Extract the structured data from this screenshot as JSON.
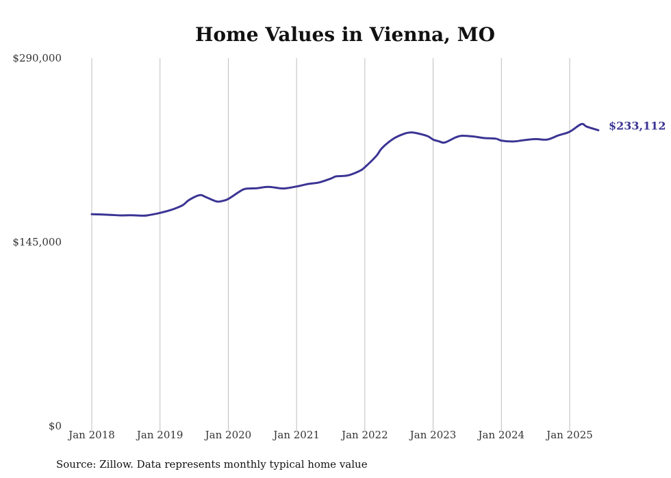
{
  "chart_data": {
    "type": "line",
    "title": "Home Values in Vienna, MO",
    "xlabel": "",
    "ylabel": "",
    "ylim": [
      0,
      290000
    ],
    "yticks": [
      {
        "value": 0,
        "label": "$0"
      },
      {
        "value": 145000,
        "label": "$145,000"
      },
      {
        "value": 290000,
        "label": "$290,000"
      }
    ],
    "xticks": [
      {
        "value": 2018.0,
        "label": "Jan 2018"
      },
      {
        "value": 2019.0,
        "label": "Jan 2019"
      },
      {
        "value": 2020.0,
        "label": "Jan 2020"
      },
      {
        "value": 2021.0,
        "label": "Jan 2021"
      },
      {
        "value": 2022.0,
        "label": "Jan 2022"
      },
      {
        "value": 2023.0,
        "label": "Jan 2023"
      },
      {
        "value": 2024.0,
        "label": "Jan 2024"
      },
      {
        "value": 2025.0,
        "label": "Jan 2025"
      }
    ],
    "grid": "vertical",
    "series": [
      {
        "color": "#3b3494",
        "end_label": "$233,112",
        "x": [
          2018.0,
          2018.25,
          2018.42,
          2018.58,
          2018.75,
          2018.83,
          2019.0,
          2019.17,
          2019.33,
          2019.42,
          2019.58,
          2019.67,
          2019.83,
          2019.92,
          2020.0,
          2020.17,
          2020.25,
          2020.42,
          2020.58,
          2020.75,
          2020.83,
          2021.0,
          2021.17,
          2021.33,
          2021.5,
          2021.58,
          2021.75,
          2021.92,
          2022.0,
          2022.17,
          2022.25,
          2022.42,
          2022.58,
          2022.67,
          2022.75,
          2022.92,
          2023.0,
          2023.08,
          2023.17,
          2023.33,
          2023.42,
          2023.58,
          2023.75,
          2023.92,
          2024.0,
          2024.17,
          2024.33,
          2024.5,
          2024.67,
          2024.83,
          2025.0,
          2025.17,
          2025.25,
          2025.42
        ],
        "values": [
          167000,
          166500,
          166000,
          166200,
          165800,
          166200,
          168000,
          170500,
          174000,
          178000,
          182000,
          180500,
          177000,
          177500,
          179000,
          185000,
          187000,
          187500,
          188500,
          187500,
          187300,
          188800,
          190800,
          192000,
          195000,
          196800,
          197500,
          201000,
          204000,
          213000,
          219000,
          226500,
          230500,
          231400,
          231000,
          228500,
          225800,
          224500,
          223500,
          227500,
          228800,
          228300,
          227000,
          226500,
          225000,
          224300,
          225300,
          226200,
          225800,
          229000,
          232000,
          238000,
          236000,
          233112
        ]
      }
    ]
  },
  "footer": {
    "source": "Source: Zillow. Data represents monthly typical home value"
  }
}
